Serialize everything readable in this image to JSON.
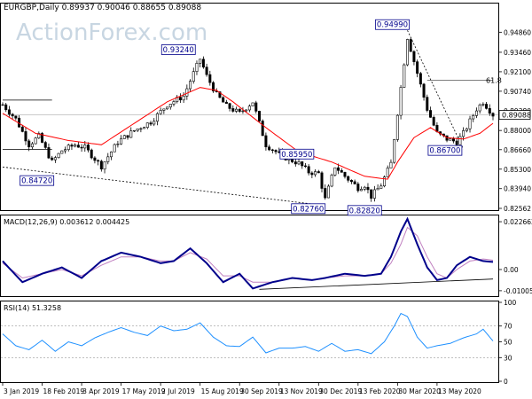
{
  "header": {
    "text": "EURGBP,Daily  0.89937 0.90046 0.88655 0.89088"
  },
  "watermark": "ActionForex.com",
  "colors": {
    "frame": "#000000",
    "candle": "#000000",
    "ma": "#ff0000",
    "macd": "#00008b",
    "signal": "#c080c0",
    "rsi": "#1e90ff",
    "level_box_border": "#00008b",
    "level_box_text": "#00008b",
    "watermark": "#c8d6e2"
  },
  "chart_data": [
    {
      "type": "candlestick",
      "title": "EURGBP,Daily",
      "ohlc_header": {
        "open": 0.89937,
        "high": 0.90046,
        "low": 0.88655,
        "close": 0.89088
      },
      "ylim": [
        0.825,
        0.968
      ],
      "y_ticks": [
        "0.94860",
        "0.93460",
        "0.92100",
        "0.90740",
        "0.89380",
        "0.88000",
        "0.86660",
        "0.85300",
        "0.83940",
        "0.82562"
      ],
      "y_tick_values": [
        0.9486,
        0.9346,
        0.921,
        0.9074,
        0.8938,
        0.88,
        0.8666,
        0.853,
        0.8394,
        0.82562
      ],
      "current_price_label": "0.89088",
      "current_price": 0.89088,
      "fib_label": "61.8",
      "fib_level": 0.915,
      "x_ticks": [
        "3 Jan 2019",
        "18 Feb 2019",
        "3 Apr 2019",
        "17 May 2019",
        "2 Jul 2019",
        "15 Aug 2019",
        "30 Sep 2019",
        "13 Nov 2019",
        "30 Dec 2019",
        "13 Feb 2020",
        "30 Mar 2020",
        "13 May 2020"
      ],
      "x_tick_index": [
        0,
        12,
        24,
        36,
        48,
        60,
        72,
        84,
        96,
        108,
        120,
        132
      ],
      "n_bars": 150,
      "price_path": [
        [
          0,
          0.898
        ],
        [
          4,
          0.888
        ],
        [
          8,
          0.87
        ],
        [
          11,
          0.876
        ],
        [
          15,
          0.858
        ],
        [
          18,
          0.866
        ],
        [
          22,
          0.87
        ],
        [
          25,
          0.868
        ],
        [
          30,
          0.855
        ],
        [
          35,
          0.872
        ],
        [
          40,
          0.88
        ],
        [
          45,
          0.886
        ],
        [
          50,
          0.898
        ],
        [
          55,
          0.904
        ],
        [
          58,
          0.92
        ],
        [
          60,
          0.93
        ],
        [
          62,
          0.918
        ],
        [
          65,
          0.905
        ],
        [
          68,
          0.897
        ],
        [
          72,
          0.892
        ],
        [
          76,
          0.9
        ],
        [
          80,
          0.87
        ],
        [
          85,
          0.862
        ],
        [
          90,
          0.857
        ],
        [
          93,
          0.851
        ],
        [
          96,
          0.85
        ],
        [
          98,
          0.832
        ],
        [
          101,
          0.855
        ],
        [
          104,
          0.848
        ],
        [
          108,
          0.84
        ],
        [
          110,
          0.842
        ],
        [
          112,
          0.834
        ],
        [
          115,
          0.842
        ],
        [
          118,
          0.857
        ],
        [
          121,
          0.91
        ],
        [
          123,
          0.945
        ],
        [
          126,
          0.92
        ],
        [
          129,
          0.895
        ],
        [
          132,
          0.878
        ],
        [
          135,
          0.874
        ],
        [
          138,
          0.872
        ],
        [
          140,
          0.878
        ],
        [
          144,
          0.895
        ],
        [
          146,
          0.9
        ],
        [
          149,
          0.891
        ]
      ],
      "ma_path": [
        [
          0,
          0.892
        ],
        [
          10,
          0.878
        ],
        [
          20,
          0.873
        ],
        [
          30,
          0.87
        ],
        [
          40,
          0.885
        ],
        [
          50,
          0.9
        ],
        [
          55,
          0.905
        ],
        [
          60,
          0.91
        ],
        [
          65,
          0.908
        ],
        [
          70,
          0.9
        ],
        [
          80,
          0.882
        ],
        [
          90,
          0.865
        ],
        [
          100,
          0.858
        ],
        [
          110,
          0.848
        ],
        [
          117,
          0.846
        ],
        [
          120,
          0.858
        ],
        [
          125,
          0.875
        ],
        [
          130,
          0.882
        ],
        [
          135,
          0.875
        ],
        [
          140,
          0.874
        ],
        [
          145,
          0.878
        ],
        [
          149,
          0.885
        ]
      ],
      "levels": [
        {
          "label": "0.94990",
          "value": 0.9499
        },
        {
          "label": "0.93240",
          "value": 0.9324
        },
        {
          "label": "0.85950",
          "value": 0.8595
        },
        {
          "label": "0.84720",
          "value": 0.8472
        },
        {
          "label": "0.86700",
          "value": 0.867
        },
        {
          "label": "0.82760",
          "value": 0.8276
        },
        {
          "label": "0.82820",
          "value": 0.8282
        }
      ],
      "trendlines": [
        {
          "from": [
            0,
            0.8545
          ],
          "to": [
            98,
            0.8276
          ]
        },
        {
          "from": [
            123,
            0.9499
          ],
          "to": [
            140,
            0.867
          ]
        },
        {
          "from": [
            0,
            0.9012
          ],
          "to": [
            15,
            0.9012
          ]
        },
        {
          "from": [
            0,
            0.8668
          ],
          "to": [
            15,
            0.8668
          ]
        },
        {
          "from": [
            129,
            0.915
          ],
          "to": [
            149,
            0.915
          ]
        }
      ]
    },
    {
      "type": "line",
      "title": "MACD(12,26,9) 0.003612 0.004425",
      "ylim": [
        -0.0122,
        0.0252
      ],
      "y_ticks": [
        "0.022662",
        "0.00",
        "-0.010052"
      ],
      "y_tick_values": [
        0.022662,
        0.0,
        -0.010052
      ],
      "series": [
        {
          "name": "MACD",
          "values": [
            0.003612
          ],
          "path": [
            [
              0,
              0.004
            ],
            [
              6,
              -0.006
            ],
            [
              12,
              -0.002
            ],
            [
              18,
              0.001
            ],
            [
              24,
              -0.004
            ],
            [
              30,
              0.004
            ],
            [
              36,
              0.008
            ],
            [
              42,
              0.006
            ],
            [
              48,
              0.003
            ],
            [
              52,
              0.004
            ],
            [
              57,
              0.01
            ],
            [
              62,
              0.003
            ],
            [
              67,
              -0.006
            ],
            [
              72,
              -0.002
            ],
            [
              76,
              -0.009
            ],
            [
              82,
              -0.006
            ],
            [
              88,
              -0.004
            ],
            [
              94,
              -0.005
            ],
            [
              98,
              -0.004
            ],
            [
              104,
              -0.002
            ],
            [
              110,
              -0.003
            ],
            [
              115,
              -0.002
            ],
            [
              118,
              0.006
            ],
            [
              121,
              0.018
            ],
            [
              123,
              0.024
            ],
            [
              126,
              0.012
            ],
            [
              129,
              0.001
            ],
            [
              132,
              -0.005
            ],
            [
              135,
              -0.004
            ],
            [
              138,
              0.002
            ],
            [
              142,
              0.006
            ],
            [
              146,
              0.004
            ],
            [
              149,
              0.0036
            ]
          ]
        },
        {
          "name": "Signal",
          "values": [
            0.004425
          ],
          "path": [
            [
              0,
              0.003
            ],
            [
              6,
              -0.004
            ],
            [
              12,
              -0.002
            ],
            [
              18,
              0.0
            ],
            [
              24,
              -0.003
            ],
            [
              30,
              0.002
            ],
            [
              36,
              0.006
            ],
            [
              42,
              0.006
            ],
            [
              48,
              0.004
            ],
            [
              52,
              0.004
            ],
            [
              57,
              0.008
            ],
            [
              62,
              0.005
            ],
            [
              67,
              -0.003
            ],
            [
              72,
              -0.003
            ],
            [
              76,
              -0.006
            ],
            [
              82,
              -0.006
            ],
            [
              88,
              -0.004
            ],
            [
              94,
              -0.005
            ],
            [
              98,
              -0.004
            ],
            [
              104,
              -0.003
            ],
            [
              110,
              -0.003
            ],
            [
              115,
              -0.002
            ],
            [
              118,
              0.003
            ],
            [
              121,
              0.012
            ],
            [
              123,
              0.02
            ],
            [
              126,
              0.016
            ],
            [
              129,
              0.006
            ],
            [
              132,
              -0.002
            ],
            [
              135,
              -0.004
            ],
            [
              138,
              0.0
            ],
            [
              142,
              0.004
            ],
            [
              146,
              0.005
            ],
            [
              149,
              0.0044
            ]
          ]
        }
      ],
      "trendline": {
        "from": [
          78,
          -0.0094
        ],
        "to": [
          149,
          -0.0045
        ]
      }
    },
    {
      "type": "line",
      "title": "RSI(14) 51.3258",
      "ylim": [
        0,
        100
      ],
      "y_ticks": [
        "100",
        "70",
        "50",
        "30",
        "0"
      ],
      "y_tick_values": [
        100,
        70,
        50,
        30,
        0
      ],
      "series": [
        {
          "name": "RSI",
          "values": [
            51.3258
          ],
          "path": [
            [
              0,
              60
            ],
            [
              4,
              45
            ],
            [
              8,
              40
            ],
            [
              12,
              52
            ],
            [
              16,
              38
            ],
            [
              20,
              50
            ],
            [
              24,
              45
            ],
            [
              28,
              55
            ],
            [
              32,
              62
            ],
            [
              36,
              68
            ],
            [
              40,
              62
            ],
            [
              44,
              58
            ],
            [
              48,
              70
            ],
            [
              52,
              64
            ],
            [
              56,
              66
            ],
            [
              60,
              74
            ],
            [
              64,
              56
            ],
            [
              68,
              45
            ],
            [
              72,
              44
            ],
            [
              76,
              56
            ],
            [
              80,
              36
            ],
            [
              84,
              42
            ],
            [
              88,
              42
            ],
            [
              92,
              44
            ],
            [
              96,
              38
            ],
            [
              100,
              48
            ],
            [
              104,
              38
            ],
            [
              108,
              40
            ],
            [
              112,
              35
            ],
            [
              116,
              50
            ],
            [
              119,
              70
            ],
            [
              121,
              86
            ],
            [
              123,
              82
            ],
            [
              126,
              56
            ],
            [
              129,
              42
            ],
            [
              132,
              45
            ],
            [
              136,
              48
            ],
            [
              140,
              55
            ],
            [
              144,
              60
            ],
            [
              146,
              66
            ],
            [
              149,
              51
            ]
          ]
        }
      ]
    }
  ]
}
